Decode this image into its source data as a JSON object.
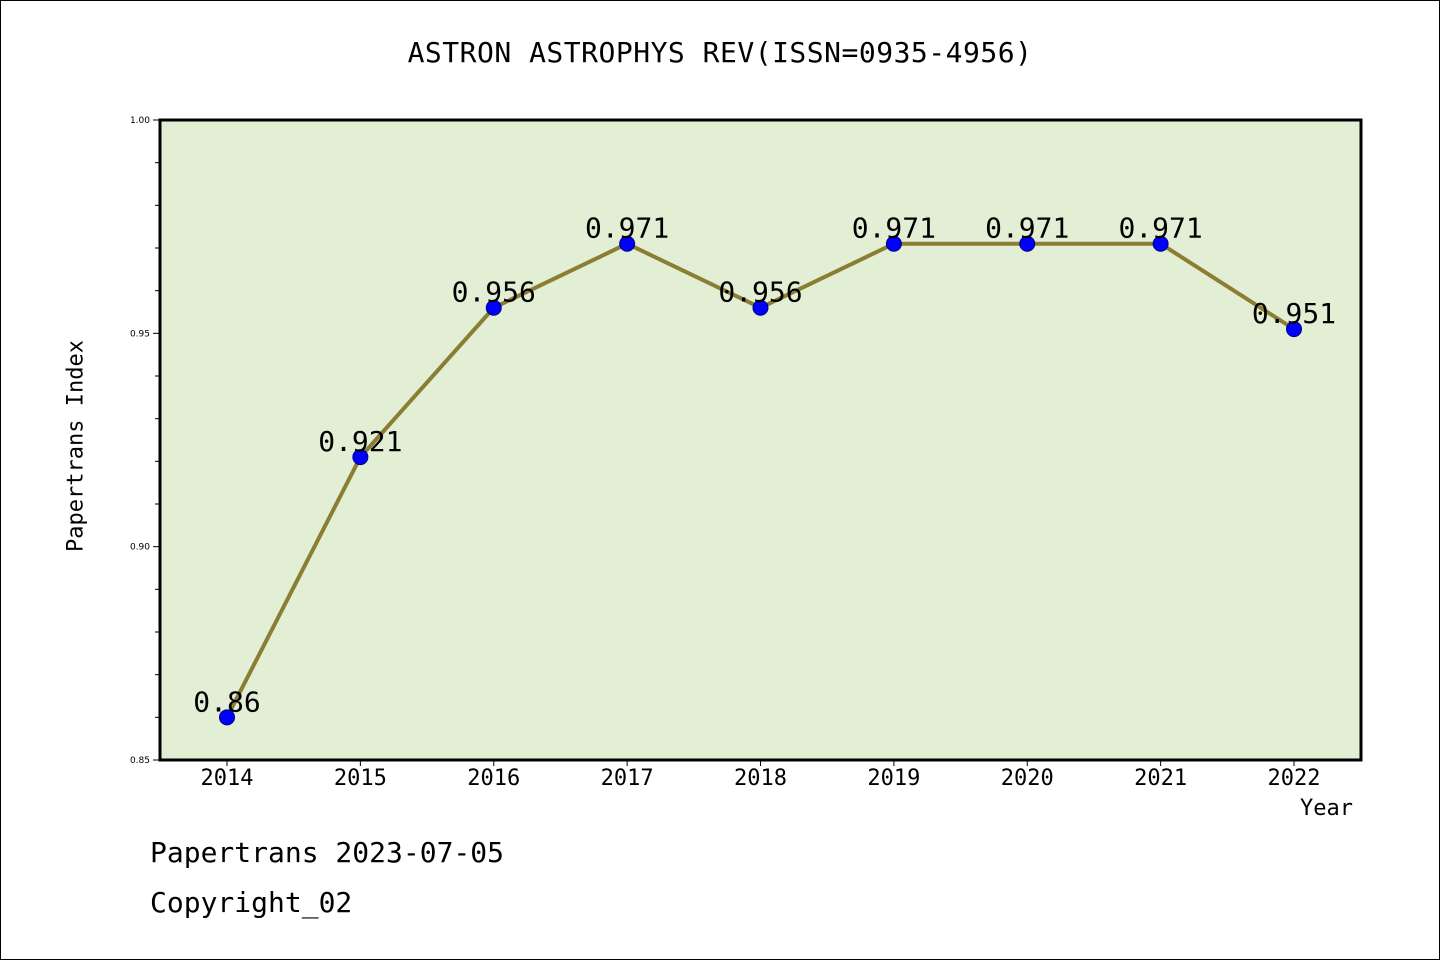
{
  "footer": {
    "date_line": "Papertrans 2023-07-05",
    "copyright_line": "Copyright_02"
  },
  "colors": {
    "plot_background": "#e2efd5",
    "line": "#8b7d33",
    "marker": "#0000ff",
    "axis": "#000000"
  },
  "chart_data": {
    "type": "line",
    "title": "ASTRON ASTROPHYS REV(ISSN=0935-4956)",
    "xlabel": "Year",
    "ylabel": "Papertrans Index",
    "x": [
      "2014",
      "2015",
      "2016",
      "2017",
      "2018",
      "2019",
      "2020",
      "2021",
      "2022"
    ],
    "series": [
      {
        "values": [
          0.86,
          0.921,
          0.956,
          0.971,
          0.956,
          0.971,
          0.971,
          0.971,
          0.951
        ],
        "data_labels": [
          "0.86",
          "0.921",
          "0.956",
          "0.971",
          "0.956",
          "0.971",
          "0.971",
          "0.971",
          "0.951"
        ]
      }
    ],
    "ylim": [
      0.85,
      1.0
    ],
    "yticks": [
      "0.85",
      "0.90",
      "0.95",
      "1.00"
    ],
    "grid": false,
    "legend": "none"
  }
}
